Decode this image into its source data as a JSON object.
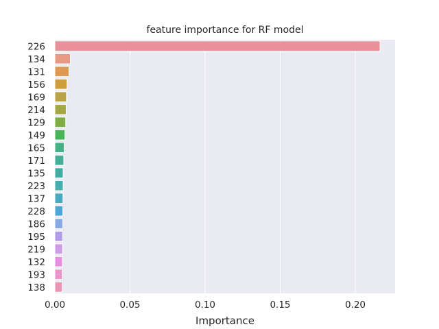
{
  "chart_data": {
    "type": "bar",
    "orientation": "horizontal",
    "title": "feature importance for RF model",
    "xlabel": "Importance",
    "ylabel": "",
    "xlim": [
      0,
      0.2265
    ],
    "xticks": [
      0.0,
      0.05,
      0.1,
      0.15,
      0.2
    ],
    "xtick_labels": [
      "0.00",
      "0.05",
      "0.10",
      "0.15",
      "0.20"
    ],
    "grid": true,
    "categories": [
      "226",
      "134",
      "131",
      "156",
      "169",
      "214",
      "129",
      "149",
      "165",
      "171",
      "135",
      "223",
      "137",
      "228",
      "186",
      "195",
      "219",
      "132",
      "193",
      "138"
    ],
    "values": [
      0.2165,
      0.0103,
      0.0094,
      0.0081,
      0.0077,
      0.0075,
      0.0072,
      0.0067,
      0.0062,
      0.0059,
      0.0055,
      0.0055,
      0.0054,
      0.0053,
      0.0053,
      0.0052,
      0.0051,
      0.005,
      0.0049,
      0.0049
    ],
    "colors": [
      "#e8919a",
      "#e89a86",
      "#de9a52",
      "#cf9e3c",
      "#b9a344",
      "#a4a844",
      "#80ad46",
      "#48b55a",
      "#47b186",
      "#45ae97",
      "#45ad9f",
      "#46aead",
      "#48abbd",
      "#4ea6d7",
      "#8aaae3",
      "#b09ee8",
      "#cf9ce6",
      "#e88ee0",
      "#e895c9",
      "#e896b4"
    ]
  }
}
